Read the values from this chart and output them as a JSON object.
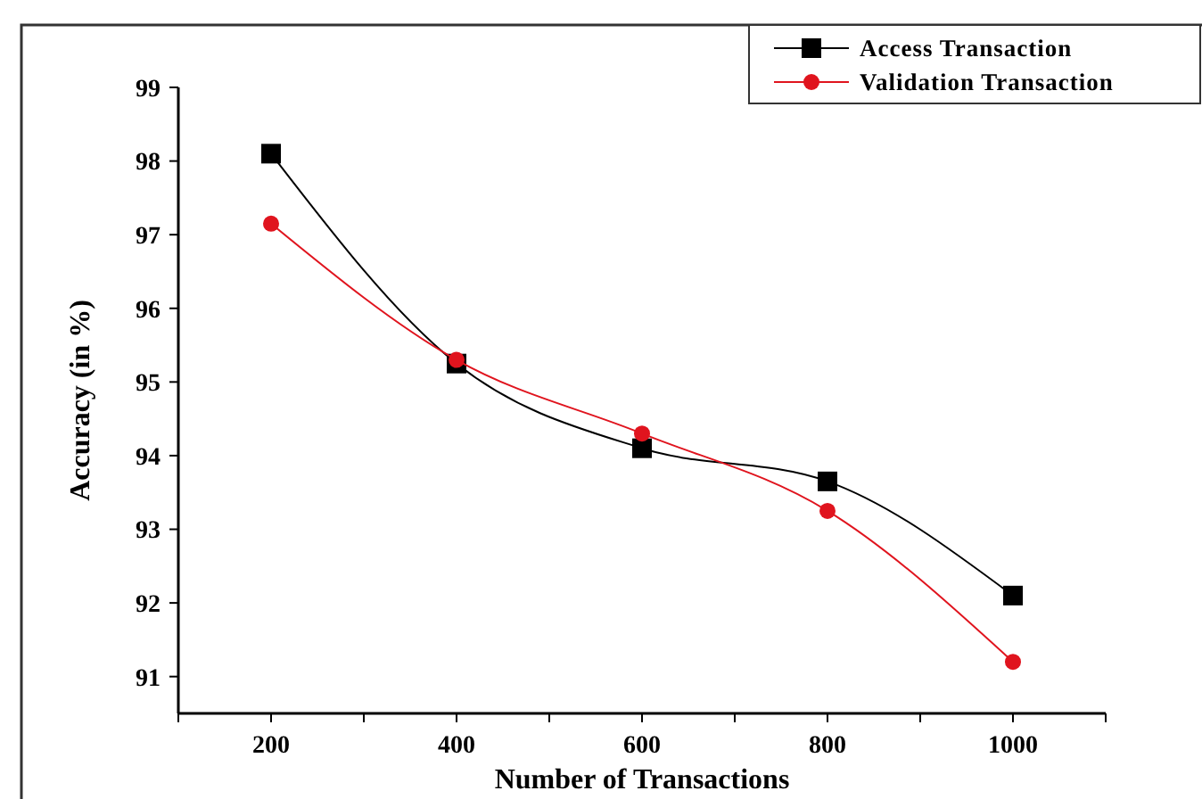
{
  "chart_data": {
    "type": "line",
    "xlabel": "Number of Transactions",
    "ylabel": "Accuracy (in %)",
    "x": [
      200,
      400,
      600,
      800,
      1000
    ],
    "series": [
      {
        "name": "Access Transaction",
        "color": "#000000",
        "marker": "square",
        "values": [
          98.1,
          95.25,
          94.1,
          93.65,
          92.1
        ]
      },
      {
        "name": "Validation Transaction",
        "color": "#e0141e",
        "marker": "circle",
        "values": [
          97.15,
          95.3,
          94.3,
          93.25,
          91.2
        ]
      }
    ],
    "xlim": [
      100,
      1100
    ],
    "xticks": [
      {
        "value": 100,
        "label": null
      },
      200,
      {
        "value": 300,
        "label": null
      },
      400,
      {
        "value": 500,
        "label": null
      },
      600,
      {
        "value": 700,
        "label": null
      },
      800,
      {
        "value": 900,
        "label": null
      },
      1000,
      {
        "value": 1100,
        "label": null
      }
    ],
    "ylim": [
      90.5,
      99
    ],
    "yticks": [
      91,
      92,
      93,
      94,
      95,
      96,
      97,
      98,
      99
    ],
    "grid": false,
    "legend": "top right"
  }
}
